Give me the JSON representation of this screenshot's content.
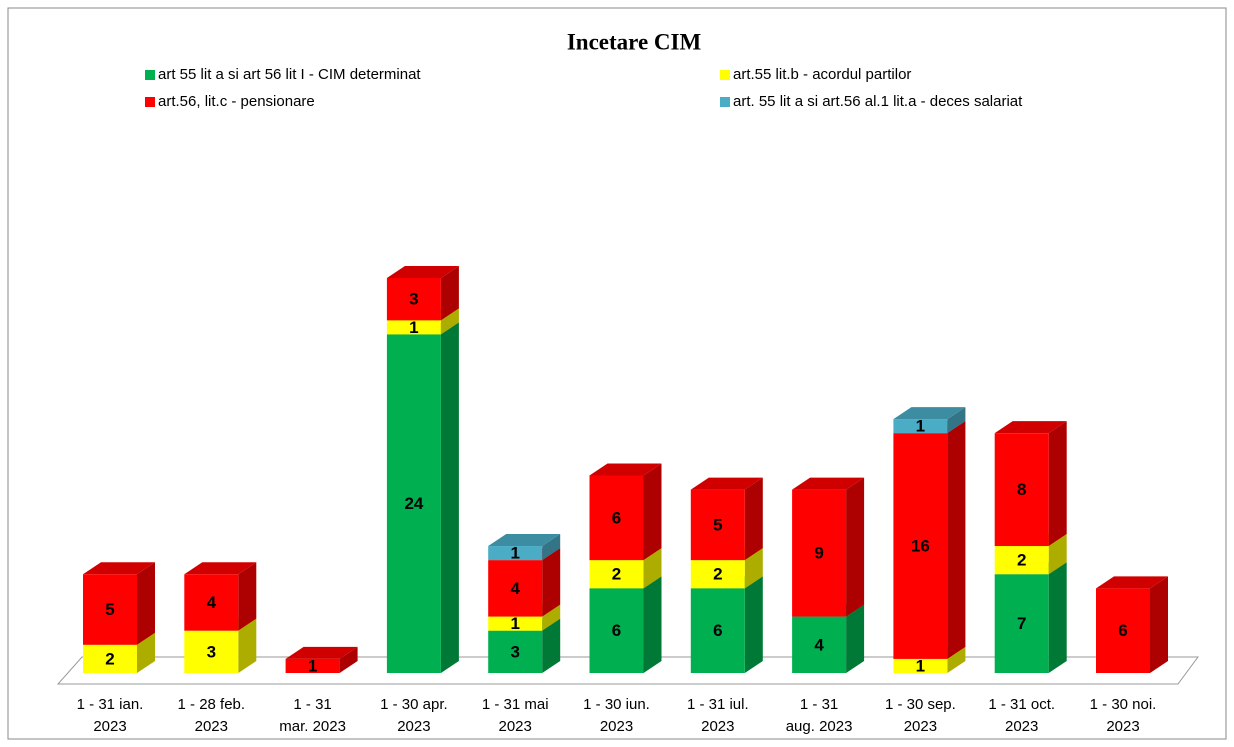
{
  "chart_data": {
    "type": "bar",
    "stacked": true,
    "three_d": true,
    "title": "Incetare CIM",
    "categories": [
      "1 - 31 ian.\n2023",
      "1 - 28 feb.\n2023",
      "1 - 31\nmar. 2023",
      "1 - 30 apr.\n2023",
      "1 - 31 mai\n2023",
      "1 - 30 iun.\n2023",
      "1 - 31 iul.\n2023",
      "1 - 31\naug. 2023",
      "1 - 30 sep.\n2023",
      "1 - 31 oct.\n2023",
      "1 - 30 noi.\n2023"
    ],
    "series": [
      {
        "name": "art 55 lit a si art 56 lit I - CIM determinat",
        "color": "#00b050",
        "values": [
          null,
          null,
          null,
          24,
          3,
          6,
          6,
          4,
          null,
          7,
          null
        ]
      },
      {
        "name": "art.55 lit.b - acordul partilor",
        "color": "#ffff00",
        "values": [
          2,
          3,
          null,
          1,
          1,
          2,
          2,
          null,
          1,
          2,
          null
        ]
      },
      {
        "name": "art.56, lit.c - pensionare",
        "color": "#ff0000",
        "values": [
          5,
          4,
          1,
          3,
          4,
          6,
          5,
          9,
          16,
          8,
          6
        ]
      },
      {
        "name": "art. 55 lit a si art.56 al.1 lit.a - deces salariat",
        "color": "#4bacc6",
        "values": [
          null,
          null,
          null,
          null,
          1,
          null,
          null,
          null,
          1,
          null,
          null
        ]
      }
    ],
    "legend": "top"
  }
}
